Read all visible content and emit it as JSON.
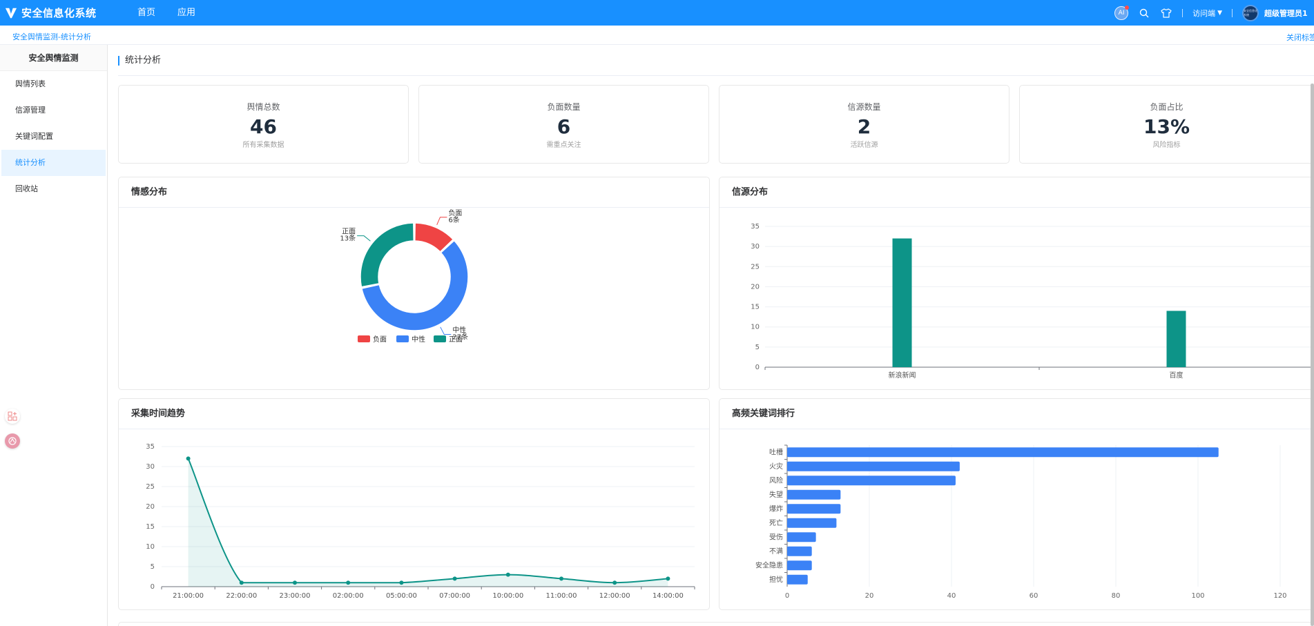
{
  "app": {
    "title": "安全信息化系统"
  },
  "topnav": [
    {
      "label": "首页"
    },
    {
      "label": "应用"
    }
  ],
  "topbar": {
    "ai_label": "AI",
    "access_label": "访问端",
    "username": "超级管理员1",
    "avatar_text": "安全信息化系统"
  },
  "breadcrumb": "安全舆情监测-统计分析",
  "close_tags": "关闭标签",
  "sidebar": {
    "title": "安全舆情监测",
    "items": [
      {
        "label": "舆情列表",
        "active": false
      },
      {
        "label": "信源管理",
        "active": false
      },
      {
        "label": "关键词配置",
        "active": false
      },
      {
        "label": "统计分析",
        "active": true
      },
      {
        "label": "回收站",
        "active": false
      }
    ]
  },
  "page_title": "统计分析",
  "stats": [
    {
      "label": "舆情总数",
      "value": "46",
      "sub": "所有采集数据"
    },
    {
      "label": "负面数量",
      "value": "6",
      "sub": "需重点关注"
    },
    {
      "label": "信源数量",
      "value": "2",
      "sub": "活跃信源"
    },
    {
      "label": "负面占比",
      "value": "13%",
      "sub": "风险指标"
    }
  ],
  "panels": {
    "sentiment": "情感分布",
    "source": "信源分布",
    "trend": "采集时间趋势",
    "keywords": "高频关键词排行"
  },
  "colors": {
    "primary": "#1890ff",
    "negative": "#ef4444",
    "neutral": "#3b82f6",
    "positive": "#0d9488",
    "teal": "#0d9488",
    "bar_blue": "#3b82f6"
  },
  "chart_data": [
    {
      "type": "pie",
      "title": "情感分布",
      "categories": [
        "负面",
        "中性",
        "正面"
      ],
      "values": [
        6,
        27,
        13
      ],
      "data_labels": [
        "6条",
        "27条",
        "13条"
      ],
      "legend": "bottom",
      "colors": [
        "#ef4444",
        "#3b82f6",
        "#0d9488"
      ]
    },
    {
      "type": "bar",
      "title": "信源分布",
      "categories": [
        "新浪新闻",
        "百度"
      ],
      "values": [
        32,
        14
      ],
      "ylim": [
        0,
        35
      ],
      "yticks": [
        0,
        5,
        10,
        15,
        20,
        25,
        30,
        35
      ],
      "grid": true,
      "color": "#0d9488"
    },
    {
      "type": "area",
      "title": "采集时间趋势",
      "categories": [
        "21:00:00",
        "22:00:00",
        "23:00:00",
        "02:00:00",
        "05:00:00",
        "07:00:00",
        "10:00:00",
        "11:00:00",
        "12:00:00",
        "14:00:00"
      ],
      "values": [
        32,
        1,
        1,
        1,
        1,
        2,
        3,
        2,
        1,
        2
      ],
      "ylim": [
        0,
        35
      ],
      "yticks": [
        0,
        5,
        10,
        15,
        20,
        25,
        30,
        35
      ],
      "grid": true,
      "color": "#0d9488"
    },
    {
      "type": "bar",
      "orientation": "horizontal",
      "title": "高频关键词排行",
      "categories": [
        "吐槽",
        "火灾",
        "风险",
        "失望",
        "爆炸",
        "死亡",
        "受伤",
        "不满",
        "安全隐患",
        "担忧"
      ],
      "values": [
        105,
        42,
        41,
        13,
        13,
        12,
        7,
        6,
        6,
        5
      ],
      "xlim": [
        0,
        120
      ],
      "xticks": [
        0,
        20,
        40,
        60,
        80,
        100,
        120
      ],
      "grid": true,
      "color": "#3b82f6"
    }
  ]
}
